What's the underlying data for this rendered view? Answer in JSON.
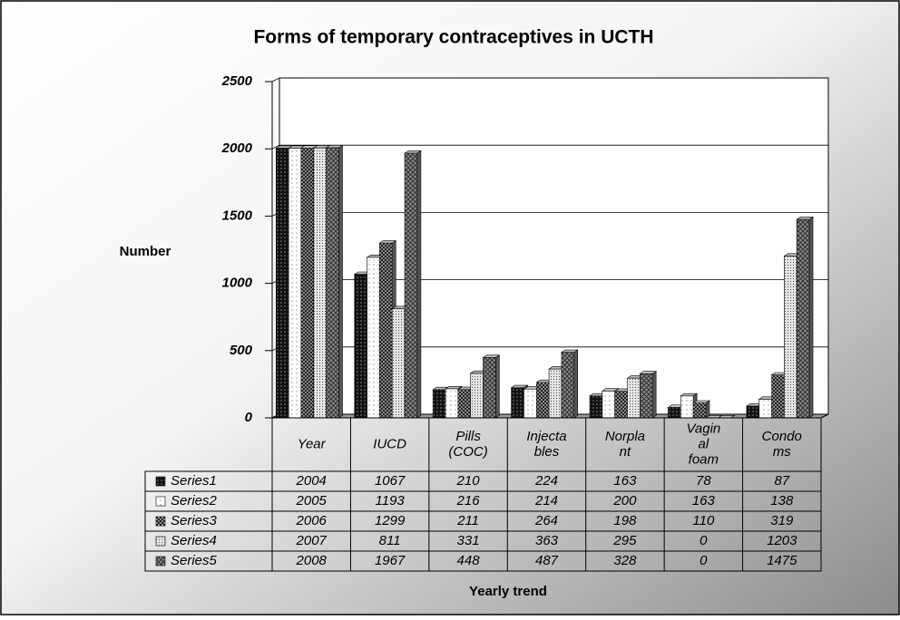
{
  "chart_data": {
    "type": "bar",
    "title": "Forms of temporary contraceptives in UCTH",
    "y_label": "Number",
    "x_label": "Yearly trend",
    "categories": [
      "Year",
      "IUCD",
      "Pills (COC)",
      "Injectables",
      "Norplant",
      "Vaginal foam",
      "Condoms"
    ],
    "series": [
      {
        "name": "Series1",
        "color": "#111111",
        "values": [
          2004,
          1067,
          210,
          224,
          163,
          78,
          87
        ]
      },
      {
        "name": "Series2",
        "color": "#ffffff",
        "values": [
          2005,
          1193,
          216,
          214,
          200,
          163,
          138
        ]
      },
      {
        "name": "Series3",
        "color": "#222222",
        "values": [
          2006,
          1299,
          211,
          264,
          198,
          110,
          319
        ]
      },
      {
        "name": "Series4",
        "color": "#e6e6e6",
        "values": [
          2007,
          811,
          331,
          363,
          295,
          0,
          1203
        ]
      },
      {
        "name": "Series5",
        "color": "#888888",
        "values": [
          2008,
          1967,
          448,
          487,
          328,
          0,
          1475
        ]
      }
    ],
    "ylim": [
      0,
      2500
    ],
    "yticks": [
      0,
      500,
      1000,
      1500,
      2000,
      2500
    ],
    "grid": true
  }
}
